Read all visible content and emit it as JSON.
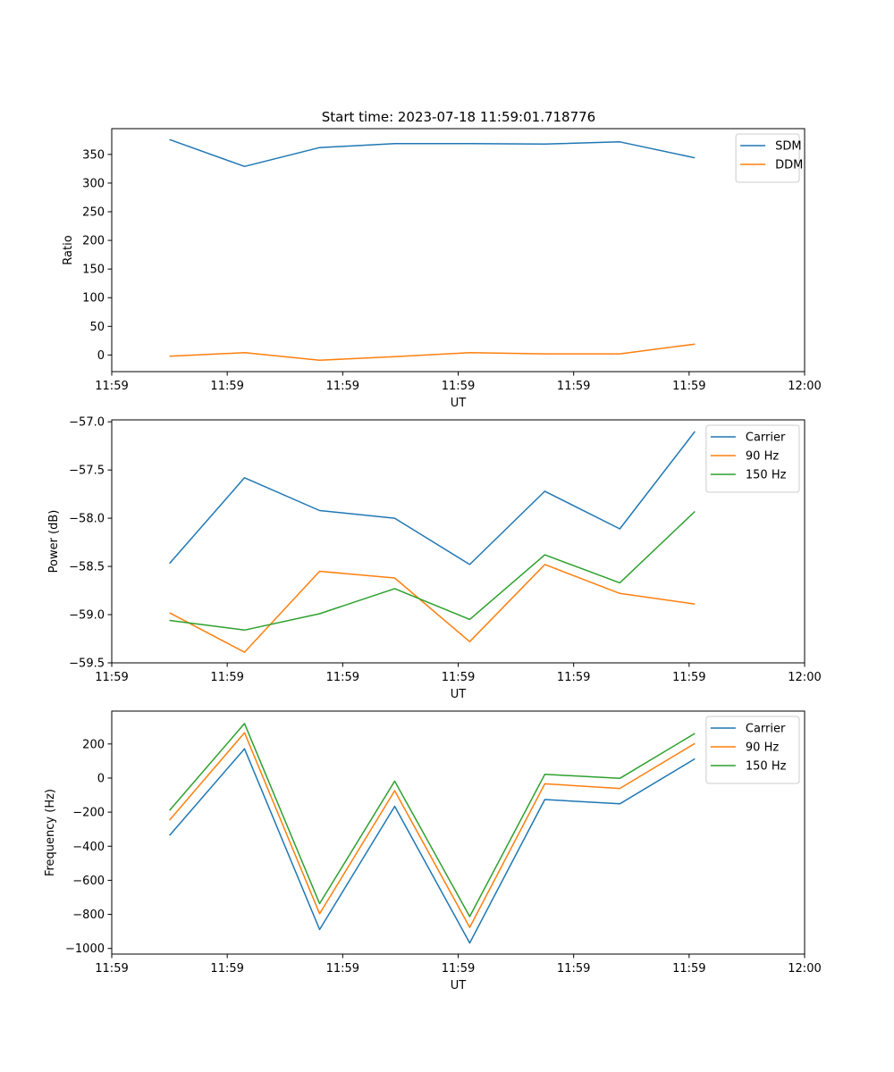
{
  "figure": {
    "title": "Start time: 2023-07-18 11:59:01.718776"
  },
  "chart_data": [
    {
      "type": "line",
      "title": "Start time: 2023-07-18 11:59:01.718776",
      "xlabel": "UT",
      "ylabel": "Ratio",
      "x": [
        0.5,
        1.15,
        1.8,
        2.45,
        3.1,
        3.75,
        4.4,
        5.05
      ],
      "xlim": [
        0,
        6
      ],
      "xticks": [
        0,
        1,
        2,
        3,
        4,
        5,
        6
      ],
      "xtick_labels": [
        "11:59",
        "11:59",
        "11:59",
        "11:59",
        "11:59",
        "11:59",
        "12:00"
      ],
      "ylim": [
        -29,
        395
      ],
      "yticks": [
        0,
        50,
        100,
        150,
        200,
        250,
        300,
        350
      ],
      "ytick_labels": [
        "0",
        "50",
        "100",
        "150",
        "200",
        "250",
        "300",
        "350"
      ],
      "legend_position": "top-right",
      "grid": false,
      "series": [
        {
          "name": "SDM",
          "color": "#1f77b4",
          "values": [
            376,
            329,
            362,
            369,
            369,
            368,
            372,
            344
          ]
        },
        {
          "name": "DDM",
          "color": "#ff7f0e",
          "values": [
            -2,
            4,
            -9,
            -3,
            4,
            2,
            2,
            19
          ]
        }
      ]
    },
    {
      "type": "line",
      "xlabel": "UT",
      "ylabel": "Power (dB)",
      "x": [
        0.5,
        1.15,
        1.8,
        2.45,
        3.1,
        3.75,
        4.4,
        5.05
      ],
      "xlim": [
        0,
        6
      ],
      "xticks": [
        0,
        1,
        2,
        3,
        4,
        5,
        6
      ],
      "xtick_labels": [
        "11:59",
        "11:59",
        "11:59",
        "11:59",
        "11:59",
        "11:59",
        "12:00"
      ],
      "ylim": [
        -59.5,
        -56.98
      ],
      "yticks": [
        -59.5,
        -59.0,
        -58.5,
        -58.0,
        -57.5,
        -57.0
      ],
      "ytick_labels": [
        "−59.5",
        "−59.0",
        "−58.5",
        "−58.0",
        "−57.5",
        "−57.0"
      ],
      "legend_position": "top-right",
      "grid": false,
      "series": [
        {
          "name": "Carrier",
          "color": "#1f77b4",
          "values": [
            -58.47,
            -57.58,
            -57.92,
            -58.0,
            -58.48,
            -57.72,
            -58.11,
            -57.1
          ]
        },
        {
          "name": "90 Hz",
          "color": "#ff7f0e",
          "values": [
            -58.98,
            -59.39,
            -58.55,
            -58.62,
            -59.28,
            -58.48,
            -58.78,
            -58.89
          ]
        },
        {
          "name": "150 Hz",
          "color": "#2ca02c",
          "values": [
            -59.06,
            -59.16,
            -58.99,
            -58.73,
            -59.05,
            -58.38,
            -58.67,
            -57.93
          ]
        }
      ]
    },
    {
      "type": "line",
      "xlabel": "UT",
      "ylabel": "Frequency (Hz)",
      "x": [
        0.5,
        1.15,
        1.8,
        2.45,
        3.1,
        3.75,
        4.4,
        5.05
      ],
      "xlim": [
        0,
        6
      ],
      "xticks": [
        0,
        1,
        2,
        3,
        4,
        5,
        6
      ],
      "xtick_labels": [
        "11:59",
        "11:59",
        "11:59",
        "11:59",
        "11:59",
        "11:59",
        "12:00"
      ],
      "ylim": [
        -1033,
        393
      ],
      "yticks": [
        -1000,
        -800,
        -600,
        -400,
        -200,
        0,
        200
      ],
      "ytick_labels": [
        "−1000",
        "−800",
        "−600",
        "−400",
        "−200",
        "0",
        "200"
      ],
      "legend_position": "top-right",
      "grid": false,
      "series": [
        {
          "name": "Carrier",
          "color": "#1f77b4",
          "values": [
            -337,
            172,
            -889,
            -166,
            -968,
            -126,
            -151,
            113
          ]
        },
        {
          "name": "90 Hz",
          "color": "#ff7f0e",
          "values": [
            -247,
            266,
            -796,
            -74,
            -876,
            -34,
            -61,
            203
          ]
        },
        {
          "name": "150 Hz",
          "color": "#2ca02c",
          "values": [
            -190,
            320,
            -737,
            -18,
            -813,
            22,
            -2,
            262
          ]
        }
      ]
    }
  ]
}
